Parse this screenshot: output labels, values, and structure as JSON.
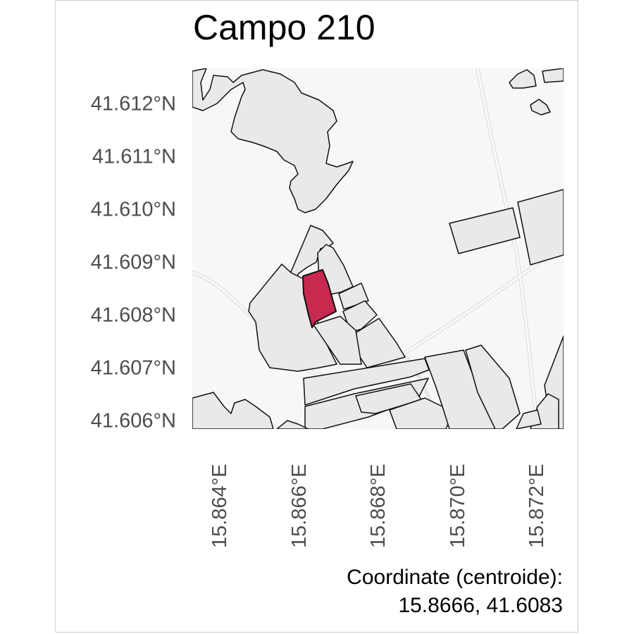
{
  "map": {
    "title": "Campo 210",
    "lat_ticks": [
      "41.612°N",
      "41.611°N",
      "41.610°N",
      "41.609°N",
      "41.608°N",
      "41.607°N",
      "41.606°N"
    ],
    "lon_ticks": [
      "15.864°E",
      "15.866°E",
      "15.868°E",
      "15.870°E",
      "15.872°E"
    ],
    "caption_line1": "Coordinate (centroide):",
    "caption_line2": "15.8666, 41.6083",
    "highlight_color": "#c8294f",
    "parcel_fill": "#e9e9e9",
    "basemap_color": "#f7f7f7"
  }
}
